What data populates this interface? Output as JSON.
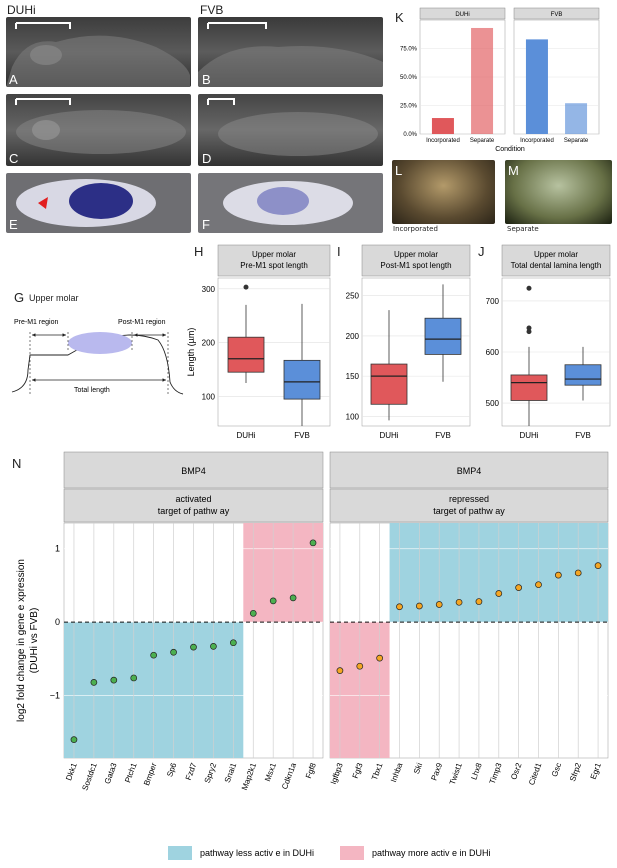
{
  "strains": {
    "left": "DUHi",
    "right": "FVB"
  },
  "panel_letters": {
    "A": "A",
    "B": "B",
    "C": "C",
    "D": "D",
    "E": "E",
    "F": "F",
    "G": "G",
    "H": "H",
    "I": "I",
    "J": "J",
    "K": "K",
    "L": "L",
    "M": "M",
    "N": "N"
  },
  "photo_captions": {
    "L": "Incorporated",
    "M": "Separate"
  },
  "diagram_G": {
    "title": "Upper molar",
    "pre_label": "Pre-M1 region",
    "post_label": "Post-M1 region",
    "total_label": "Total length"
  },
  "colors": {
    "duhi": "#e0585b",
    "fvb": "#5b8fd9",
    "blue_band": "#9fd3e0",
    "pink_band": "#f4b6c2",
    "point_green": "#4caf50",
    "point_orange": "#f5a623"
  },
  "chart_data": [
    {
      "id": "K",
      "type": "bar",
      "facets": [
        "DUHi",
        "FVB"
      ],
      "categories": [
        "Incorporated",
        "Separate"
      ],
      "xlabel": "Condition",
      "yticks": [
        "0.0%",
        "25.0%",
        "50.0%",
        "75.0%"
      ],
      "ylim": [
        0,
        1.0
      ],
      "series": [
        {
          "facet": "DUHi",
          "values": [
            0.14,
            0.93
          ]
        },
        {
          "facet": "FVB",
          "values": [
            0.83,
            0.27
          ]
        }
      ]
    },
    {
      "id": "H",
      "type": "box",
      "strip": [
        "Upper molar",
        "Pre-M1 spot length"
      ],
      "ylabel": "Length (µm)",
      "categories": [
        "DUHi",
        "FVB"
      ],
      "ylim": [
        45,
        320
      ],
      "yticks": [
        100,
        200,
        300
      ],
      "boxes": [
        {
          "group": "DUHi",
          "min": 125,
          "q1": 145,
          "median": 170,
          "q3": 210,
          "max": 270,
          "outliers": [
            303
          ]
        },
        {
          "group": "FVB",
          "min": 45,
          "q1": 95,
          "median": 127,
          "q3": 167,
          "max": 272,
          "outliers": []
        }
      ]
    },
    {
      "id": "I",
      "type": "box",
      "strip": [
        "Upper molar",
        "Post-M1 spot length"
      ],
      "categories": [
        "DUHi",
        "FVB"
      ],
      "ylim": [
        88,
        272
      ],
      "yticks": [
        100,
        150,
        200,
        250
      ],
      "boxes": [
        {
          "group": "DUHi",
          "min": 95,
          "q1": 115,
          "median": 150,
          "q3": 165,
          "max": 232,
          "outliers": []
        },
        {
          "group": "FVB",
          "min": 143,
          "q1": 177,
          "median": 196,
          "q3": 222,
          "max": 264,
          "outliers": []
        }
      ]
    },
    {
      "id": "J",
      "type": "box",
      "strip": [
        "Upper molar",
        "Total dental lamina length"
      ],
      "categories": [
        "DUHi",
        "FVB"
      ],
      "ylim": [
        455,
        745
      ],
      "yticks": [
        500,
        600,
        700
      ],
      "boxes": [
        {
          "group": "DUHi",
          "min": 455,
          "q1": 505,
          "median": 540,
          "q3": 555,
          "max": 610,
          "outliers": [
            640,
            647,
            725
          ]
        },
        {
          "group": "FVB",
          "min": 505,
          "q1": 535,
          "median": 547,
          "q3": 575,
          "max": 610,
          "outliers": []
        }
      ]
    },
    {
      "id": "N",
      "type": "scatter",
      "ylabel_lines": [
        "log2 fold change in gene e  xpression",
        "(DUHi vs FVB)"
      ],
      "ylim": [
        -1.85,
        1.35
      ],
      "yticks": [
        -1,
        0,
        1
      ],
      "legend": [
        {
          "label": "pathway less activ  e in DUHi",
          "color": "#9fd3e0"
        },
        {
          "label": "pathway more activ  e in DUHi",
          "color": "#f4b6c2"
        }
      ],
      "facets": [
        {
          "strip_top": "BMP4",
          "strip_bottom": [
            "activated",
            "target of pathw ay"
          ],
          "genes": [
            "Dkk1",
            "Sostdc1",
            "Gata3",
            "Ptch1",
            "Bmper",
            "Sp6",
            "Fzd7",
            "Spry2",
            "Snai1",
            "Map2k1",
            "Msx1",
            "Cdkn1a",
            "Fgf8"
          ],
          "values": [
            -1.6,
            -0.82,
            -0.79,
            -0.76,
            -0.45,
            -0.41,
            -0.34,
            -0.33,
            -0.28,
            0.12,
            0.29,
            0.33,
            1.08
          ],
          "band_split_index": 9
        },
        {
          "strip_top": "BMP4",
          "strip_bottom": [
            "repressed",
            "target of pathw ay"
          ],
          "genes": [
            "Igfbp3",
            "Fgf3",
            "Tbx1",
            "Inhba",
            "Ski",
            "Pax9",
            "Twist1",
            "Lhx8",
            "Timp3",
            "Osr2",
            "Cited1",
            "Gsc",
            "Sfrp2",
            "Egr1"
          ],
          "values": [
            -0.66,
            -0.6,
            -0.49,
            0.21,
            0.22,
            0.24,
            0.27,
            0.28,
            0.39,
            0.47,
            0.51,
            0.64,
            0.67,
            0.77
          ],
          "band_split_index": 3
        }
      ]
    }
  ]
}
